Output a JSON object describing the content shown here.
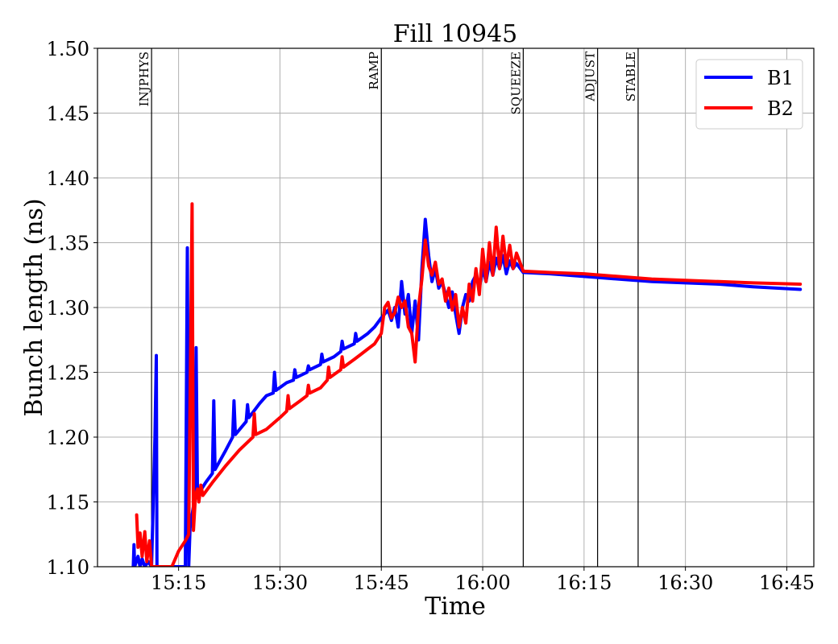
{
  "chart_data": {
    "type": "line",
    "title": "Fill 10945",
    "xlabel": "Time",
    "ylabel": "Bunch length (ns)",
    "xlim": [
      "15:03",
      "16:49"
    ],
    "ylim": [
      1.1,
      1.5
    ],
    "xticks": [
      "15:15",
      "15:30",
      "15:45",
      "16:00",
      "16:15",
      "16:30",
      "16:45"
    ],
    "yticks": [
      "1.10",
      "1.15",
      "1.20",
      "1.25",
      "1.30",
      "1.35",
      "1.40",
      "1.45",
      "1.50"
    ],
    "grid": true,
    "legend": "top-right",
    "phases": [
      {
        "label": "INJPHYS",
        "time": "15:11"
      },
      {
        "label": "RAMP",
        "time": "15:45"
      },
      {
        "label": "SQUEEZE",
        "time": "16:06"
      },
      {
        "label": "ADJUST",
        "time": "16:17"
      },
      {
        "label": "STABLE",
        "time": "16:23"
      }
    ],
    "series": [
      {
        "name": "B1",
        "color": "#0000ff",
        "points": [
          [
            "15:08.3",
            1.1
          ],
          [
            "15:08.4",
            1.117
          ],
          [
            "15:08.5",
            1.1
          ],
          [
            "15:09.0",
            1.108
          ],
          [
            "15:09.3",
            1.1
          ],
          [
            "15:09.6",
            1.106
          ],
          [
            "15:10.0",
            1.1
          ],
          [
            "15:10.5",
            1.104
          ],
          [
            "15:11.0",
            1.1
          ],
          [
            "15:11.5",
            1.2
          ],
          [
            "15:11.7",
            1.263
          ],
          [
            "15:11.8",
            1.1
          ],
          [
            "15:14.0",
            1.1
          ],
          [
            "15:16.0",
            1.1
          ],
          [
            "15:16.3",
            1.346
          ],
          [
            "15:16.5",
            1.1
          ],
          [
            "15:16.7",
            1.13
          ],
          [
            "15:17.0",
            1.14
          ],
          [
            "15:17.3",
            1.15
          ],
          [
            "15:17.6",
            1.269
          ],
          [
            "15:17.8",
            1.155
          ],
          [
            "15:19.0",
            1.165
          ],
          [
            "15:20.0",
            1.172
          ],
          [
            "15:20.2",
            1.228
          ],
          [
            "15:20.4",
            1.175
          ],
          [
            "15:22.0",
            1.19
          ],
          [
            "15:23.0",
            1.2
          ],
          [
            "15:23.2",
            1.228
          ],
          [
            "15:23.4",
            1.202
          ],
          [
            "15:25.0",
            1.212
          ],
          [
            "15:25.2",
            1.225
          ],
          [
            "15:25.4",
            1.215
          ],
          [
            "15:27.0",
            1.226
          ],
          [
            "15:28.0",
            1.232
          ],
          [
            "15:29.0",
            1.234
          ],
          [
            "15:29.2",
            1.25
          ],
          [
            "15:29.4",
            1.236
          ],
          [
            "15:31.0",
            1.242
          ],
          [
            "15:32.0",
            1.244
          ],
          [
            "15:32.2",
            1.252
          ],
          [
            "15:32.4",
            1.246
          ],
          [
            "15:34.0",
            1.25
          ],
          [
            "15:34.2",
            1.255
          ],
          [
            "15:34.4",
            1.252
          ],
          [
            "15:36.0",
            1.256
          ],
          [
            "15:36.2",
            1.264
          ],
          [
            "15:36.4",
            1.258
          ],
          [
            "15:38.0",
            1.262
          ],
          [
            "15:39.0",
            1.266
          ],
          [
            "15:39.2",
            1.274
          ],
          [
            "15:39.4",
            1.268
          ],
          [
            "15:41.0",
            1.272
          ],
          [
            "15:41.2",
            1.28
          ],
          [
            "15:41.4",
            1.274
          ],
          [
            "15:43.0",
            1.28
          ],
          [
            "15:44.0",
            1.285
          ],
          [
            "15:45.0",
            1.292
          ],
          [
            "15:46.0",
            1.298
          ],
          [
            "15:46.5",
            1.29
          ],
          [
            "15:47.0",
            1.3
          ],
          [
            "15:47.5",
            1.285
          ],
          [
            "15:48.0",
            1.32
          ],
          [
            "15:48.5",
            1.295
          ],
          [
            "15:49.0",
            1.31
          ],
          [
            "15:49.5",
            1.28
          ],
          [
            "15:50.0",
            1.305
          ],
          [
            "15:50.5",
            1.275
          ],
          [
            "15:51.0",
            1.33
          ],
          [
            "15:51.5",
            1.368
          ],
          [
            "15:52.0",
            1.34
          ],
          [
            "15:52.5",
            1.32
          ],
          [
            "15:53.0",
            1.33
          ],
          [
            "15:53.5",
            1.315
          ],
          [
            "15:54.0",
            1.32
          ],
          [
            "15:54.5",
            1.31
          ],
          [
            "15:55.0",
            1.3
          ],
          [
            "15:55.5",
            1.312
          ],
          [
            "15:56.0",
            1.295
          ],
          [
            "15:56.5",
            1.28
          ],
          [
            "15:57.0",
            1.3
          ],
          [
            "15:57.5",
            1.31
          ],
          [
            "15:58.0",
            1.305
          ],
          [
            "15:58.5",
            1.32
          ],
          [
            "15:59.0",
            1.325
          ],
          [
            "15:59.5",
            1.315
          ],
          [
            "16:00.0",
            1.33
          ],
          [
            "16:00.5",
            1.32
          ],
          [
            "16:01.0",
            1.335
          ],
          [
            "16:01.5",
            1.325
          ],
          [
            "16:02.0",
            1.338
          ],
          [
            "16:02.5",
            1.33
          ],
          [
            "16:03.0",
            1.34
          ],
          [
            "16:03.5",
            1.326
          ],
          [
            "16:04.0",
            1.336
          ],
          [
            "16:04.5",
            1.33
          ],
          [
            "16:05.0",
            1.334
          ],
          [
            "16:06.0",
            1.327
          ],
          [
            "16:10.0",
            1.326
          ],
          [
            "16:15.0",
            1.324
          ],
          [
            "16:20.0",
            1.322
          ],
          [
            "16:25.0",
            1.32
          ],
          [
            "16:30.0",
            1.319
          ],
          [
            "16:35.0",
            1.318
          ],
          [
            "16:40.0",
            1.316
          ],
          [
            "16:47.0",
            1.314
          ]
        ]
      },
      {
        "name": "B2",
        "color": "#ff0000",
        "points": [
          [
            "15:08.8",
            1.14
          ],
          [
            "15:09.0",
            1.115
          ],
          [
            "15:09.3",
            1.126
          ],
          [
            "15:09.6",
            1.108
          ],
          [
            "15:10.0",
            1.127
          ],
          [
            "15:10.3",
            1.104
          ],
          [
            "15:10.7",
            1.12
          ],
          [
            "15:11.0",
            1.1
          ],
          [
            "15:14.0",
            1.1
          ],
          [
            "15:15.0",
            1.112
          ],
          [
            "15:16.0",
            1.12
          ],
          [
            "15:16.5",
            1.125
          ],
          [
            "15:17.0",
            1.38
          ],
          [
            "15:17.2",
            1.128
          ],
          [
            "15:17.5",
            1.155
          ],
          [
            "15:17.8",
            1.16
          ],
          [
            "15:18.0",
            1.15
          ],
          [
            "15:18.3",
            1.163
          ],
          [
            "15:18.6",
            1.155
          ],
          [
            "15:20.0",
            1.165
          ],
          [
            "15:22.0",
            1.178
          ],
          [
            "15:24.0",
            1.19
          ],
          [
            "15:26.0",
            1.2
          ],
          [
            "15:26.2",
            1.218
          ],
          [
            "15:26.4",
            1.202
          ],
          [
            "15:28.0",
            1.206
          ],
          [
            "15:30.0",
            1.215
          ],
          [
            "15:31.0",
            1.22
          ],
          [
            "15:31.2",
            1.232
          ],
          [
            "15:31.4",
            1.222
          ],
          [
            "15:33.0",
            1.228
          ],
          [
            "15:34.0",
            1.232
          ],
          [
            "15:34.2",
            1.24
          ],
          [
            "15:34.4",
            1.234
          ],
          [
            "15:36.0",
            1.238
          ],
          [
            "15:37.0",
            1.244
          ],
          [
            "15:37.2",
            1.254
          ],
          [
            "15:37.4",
            1.246
          ],
          [
            "15:39.0",
            1.252
          ],
          [
            "15:39.2",
            1.262
          ],
          [
            "15:39.4",
            1.254
          ],
          [
            "15:41.0",
            1.26
          ],
          [
            "15:42.0",
            1.264
          ],
          [
            "15:43.0",
            1.268
          ],
          [
            "15:44.0",
            1.272
          ],
          [
            "15:45.0",
            1.28
          ],
          [
            "15:45.5",
            1.3
          ],
          [
            "15:46.0",
            1.304
          ],
          [
            "15:46.5",
            1.292
          ],
          [
            "15:47.0",
            1.296
          ],
          [
            "15:47.5",
            1.308
          ],
          [
            "15:48.0",
            1.3
          ],
          [
            "15:48.5",
            1.305
          ],
          [
            "15:49.0",
            1.285
          ],
          [
            "15:49.5",
            1.28
          ],
          [
            "15:50.0",
            1.258
          ],
          [
            "15:50.5",
            1.3
          ],
          [
            "15:51.0",
            1.322
          ],
          [
            "15:51.5",
            1.352
          ],
          [
            "15:52.0",
            1.332
          ],
          [
            "15:52.5",
            1.325
          ],
          [
            "15:53.0",
            1.335
          ],
          [
            "15:53.5",
            1.318
          ],
          [
            "15:54.0",
            1.322
          ],
          [
            "15:54.5",
            1.305
          ],
          [
            "15:55.0",
            1.315
          ],
          [
            "15:55.5",
            1.298
          ],
          [
            "15:56.0",
            1.31
          ],
          [
            "15:56.5",
            1.285
          ],
          [
            "15:57.0",
            1.3
          ],
          [
            "15:57.5",
            1.288
          ],
          [
            "15:58.0",
            1.318
          ],
          [
            "15:58.5",
            1.305
          ],
          [
            "15:59.0",
            1.33
          ],
          [
            "15:59.5",
            1.31
          ],
          [
            "16:00.0",
            1.345
          ],
          [
            "16:00.5",
            1.32
          ],
          [
            "16:01.0",
            1.35
          ],
          [
            "16:01.5",
            1.325
          ],
          [
            "16:02.0",
            1.362
          ],
          [
            "16:02.5",
            1.33
          ],
          [
            "16:03.0",
            1.355
          ],
          [
            "16:03.5",
            1.332
          ],
          [
            "16:04.0",
            1.348
          ],
          [
            "16:04.5",
            1.33
          ],
          [
            "16:05.0",
            1.342
          ],
          [
            "16:06.0",
            1.328
          ],
          [
            "16:10.0",
            1.327
          ],
          [
            "16:15.0",
            1.326
          ],
          [
            "16:20.0",
            1.324
          ],
          [
            "16:25.0",
            1.322
          ],
          [
            "16:30.0",
            1.321
          ],
          [
            "16:35.0",
            1.32
          ],
          [
            "16:40.0",
            1.319
          ],
          [
            "16:47.0",
            1.318
          ]
        ]
      }
    ]
  }
}
